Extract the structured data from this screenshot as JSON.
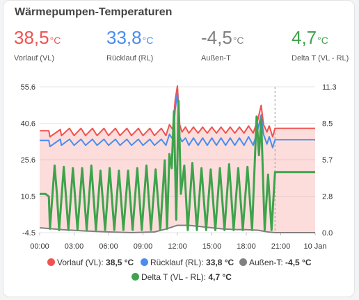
{
  "card": {
    "title": "Wärmepumpen-Temperaturen"
  },
  "stats": [
    {
      "value": "38,5",
      "unit": "°C",
      "label": "Vorlauf (VL)",
      "color": "#ef5350"
    },
    {
      "value": "33,8",
      "unit": "°C",
      "label": "Rücklauf (RL)",
      "color": "#4a8df0"
    },
    {
      "value": "-4,5",
      "unit": "°C",
      "label": "Außen-T",
      "color": "#808080"
    },
    {
      "value": "4,7",
      "unit": "°C",
      "label": "Delta T (VL - RL)",
      "color": "#3ea34c"
    }
  ],
  "legend": [
    {
      "name": "Vorlauf (VL):",
      "value": "38,5 °C",
      "color": "#ef5350"
    },
    {
      "name": "Rücklauf (RL):",
      "value": "33,8 °C",
      "color": "#4a8df0"
    },
    {
      "name": "Außen-T:",
      "value": "-4,5 °C",
      "color": "#808080"
    },
    {
      "name": "Delta T (VL - RL):",
      "value": "4,7 °C",
      "color": "#3ea34c"
    }
  ],
  "chart_data": {
    "type": "line",
    "x_ticks": [
      "00:00",
      "03:00",
      "06:00",
      "09:00",
      "12:00",
      "15:00",
      "18:00",
      "21:00",
      "10 Jan"
    ],
    "y_left_ticks": [
      "55.6",
      "40.6",
      "25.6",
      "10.5",
      "-4.5"
    ],
    "y_right_ticks": [
      "11.3",
      "8.5",
      "5.7",
      "2.8",
      "0.0"
    ],
    "ylim_left": [
      -4.5,
      55.6
    ],
    "ylim_right": [
      0,
      11.3
    ],
    "x_unit": "hours",
    "xlim": [
      0,
      24
    ],
    "now_hour": 20.5,
    "series": [
      {
        "name": "Vorlauf (VL)",
        "color": "#ef5350",
        "axis": "left",
        "x": [
          0,
          0.8,
          0.9,
          1.8,
          1.9,
          2.6,
          3.0,
          3.6,
          4.0,
          4.6,
          5.0,
          5.6,
          6.0,
          6.6,
          7.0,
          7.6,
          8.0,
          8.6,
          9.0,
          9.6,
          10.0,
          10.6,
          11.0,
          11.3,
          11.6,
          11.8,
          12.0,
          12.2,
          12.4,
          12.7,
          13.0,
          13.4,
          13.8,
          14.2,
          14.6,
          15.0,
          15.4,
          15.8,
          16.2,
          16.6,
          17.0,
          17.4,
          17.8,
          18.2,
          18.6,
          19.0,
          19.3,
          19.5,
          19.8,
          20.0,
          20.3,
          20.5,
          24
        ],
        "y": [
          37.5,
          37.5,
          35,
          38,
          35.5,
          38.5,
          35.5,
          38.5,
          35.5,
          38.5,
          35.5,
          38.5,
          35.5,
          38.5,
          35.5,
          38.5,
          35.5,
          38.5,
          35.5,
          38.5,
          35.5,
          38.5,
          35.5,
          40,
          38,
          50,
          56,
          40,
          37,
          39,
          36.5,
          39,
          36.5,
          39,
          36.5,
          39,
          36.5,
          39,
          36.5,
          39,
          36.5,
          39,
          36.5,
          39.5,
          36.5,
          42,
          48,
          40,
          37,
          39.5,
          35,
          38.5,
          38.5
        ]
      },
      {
        "name": "Rücklauf (RL)",
        "color": "#4a8df0",
        "axis": "left",
        "x": [
          0,
          0.8,
          0.9,
          1.8,
          1.9,
          2.6,
          3.0,
          3.6,
          4.0,
          4.6,
          5.0,
          5.6,
          6.0,
          6.6,
          7.0,
          7.6,
          8.0,
          8.6,
          9.0,
          9.6,
          10.0,
          10.6,
          11.0,
          11.3,
          11.6,
          11.8,
          12.0,
          12.2,
          12.4,
          12.7,
          13.0,
          13.4,
          13.8,
          14.2,
          14.6,
          15.0,
          15.4,
          15.8,
          16.2,
          16.6,
          17.0,
          17.4,
          17.8,
          18.2,
          18.6,
          19.0,
          19.3,
          19.5,
          19.8,
          20.0,
          20.3,
          20.5,
          24
        ],
        "y": [
          33.5,
          33.5,
          31,
          34,
          31.5,
          34,
          31.5,
          34,
          31.5,
          34,
          31.5,
          34,
          31.5,
          34,
          31.5,
          34,
          31.5,
          34,
          31.5,
          34,
          31.5,
          34,
          31.5,
          36,
          34,
          46,
          53,
          35,
          33,
          34.5,
          31.5,
          34.5,
          31.5,
          34.5,
          31.5,
          34.5,
          31.5,
          34.5,
          31.5,
          34.5,
          31.5,
          34.5,
          31.5,
          35,
          31.5,
          38,
          44,
          36,
          32,
          35,
          30.5,
          33.8,
          33.8
        ]
      },
      {
        "name": "Außen-T",
        "color": "#808080",
        "axis": "left",
        "x": [
          0,
          2,
          4,
          6,
          8,
          10,
          11,
          12,
          13,
          14,
          15,
          16,
          17,
          18,
          19,
          20,
          20.5,
          24
        ],
        "y": [
          -2.5,
          -3.3,
          -3.8,
          -4.2,
          -4.5,
          -4.2,
          -3,
          -1.5,
          -1.5,
          -2,
          -2.5,
          -3,
          -3.2,
          -3.3,
          -3.5,
          -4.3,
          -4.5,
          -4.5
        ]
      },
      {
        "name": "Delta T (VL - RL)",
        "color": "#3ea34c",
        "axis": "right",
        "x": [
          0,
          0.5,
          0.8,
          0.9,
          1.3,
          1.5,
          1.7,
          2.1,
          2.5,
          2.9,
          3.3,
          3.7,
          4.1,
          4.5,
          4.9,
          5.3,
          5.7,
          6.1,
          6.5,
          6.9,
          7.3,
          7.7,
          8.1,
          8.5,
          8.9,
          9.3,
          9.7,
          10.1,
          10.5,
          10.9,
          11.1,
          11.3,
          11.5,
          11.7,
          11.9,
          12.1,
          12.3,
          12.6,
          12.9,
          13.3,
          13.7,
          14.1,
          14.5,
          14.9,
          15.3,
          15.7,
          16.1,
          16.5,
          16.9,
          17.3,
          17.7,
          18.1,
          18.5,
          18.9,
          19.1,
          19.3,
          19.6,
          19.9,
          20.2,
          20.5,
          24
        ],
        "y": [
          3.0,
          3.0,
          2.8,
          0.3,
          5.2,
          3.0,
          0.2,
          5.1,
          0.2,
          5.0,
          0.2,
          5.0,
          0.2,
          5.2,
          0.2,
          4.8,
          0.2,
          5.0,
          0.2,
          4.8,
          0.2,
          4.8,
          0.2,
          5.0,
          0.2,
          5.2,
          0.2,
          4.9,
          0.2,
          5.6,
          0.3,
          6.1,
          5.0,
          9.4,
          1.0,
          10.2,
          3.0,
          5.2,
          0.2,
          5.4,
          0.2,
          5.0,
          0.2,
          4.9,
          0.2,
          5.0,
          0.2,
          5.3,
          0.2,
          5.0,
          0.2,
          5.1,
          0.2,
          9.0,
          6.0,
          8.8,
          0.2,
          4.5,
          0.2,
          4.7,
          4.7
        ]
      }
    ]
  }
}
